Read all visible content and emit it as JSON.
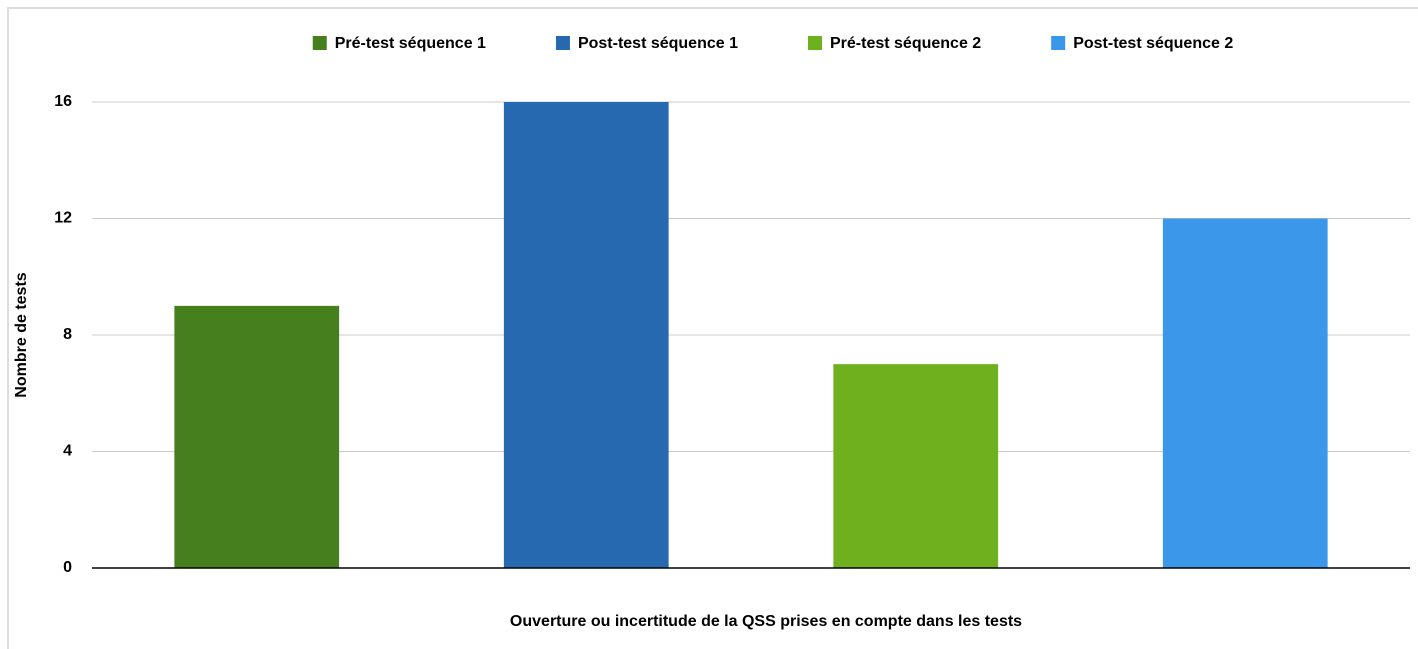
{
  "chart_data": {
    "type": "bar",
    "x_label": "Ouverture ou incertitude de la QSS prises en compte dans les tests",
    "y_label": "Nombre de tests",
    "categories": [
      null
    ],
    "series": [
      {
        "name": "Pré-test séquence 1",
        "color": "#467f1e",
        "values": [
          9
        ]
      },
      {
        "name": "Post-test séquence 1",
        "color": "#2769b1",
        "values": [
          16
        ]
      },
      {
        "name": "Pré-test séquence 2",
        "color": "#6fb01f",
        "values": [
          7
        ]
      },
      {
        "name": "Post-test séquence 2",
        "color": "#3a97ea",
        "values": [
          12
        ]
      }
    ],
    "ylim": [
      0,
      16
    ],
    "yticks": [
      0,
      4,
      8,
      12,
      16
    ],
    "grid": true,
    "legend": "top"
  }
}
